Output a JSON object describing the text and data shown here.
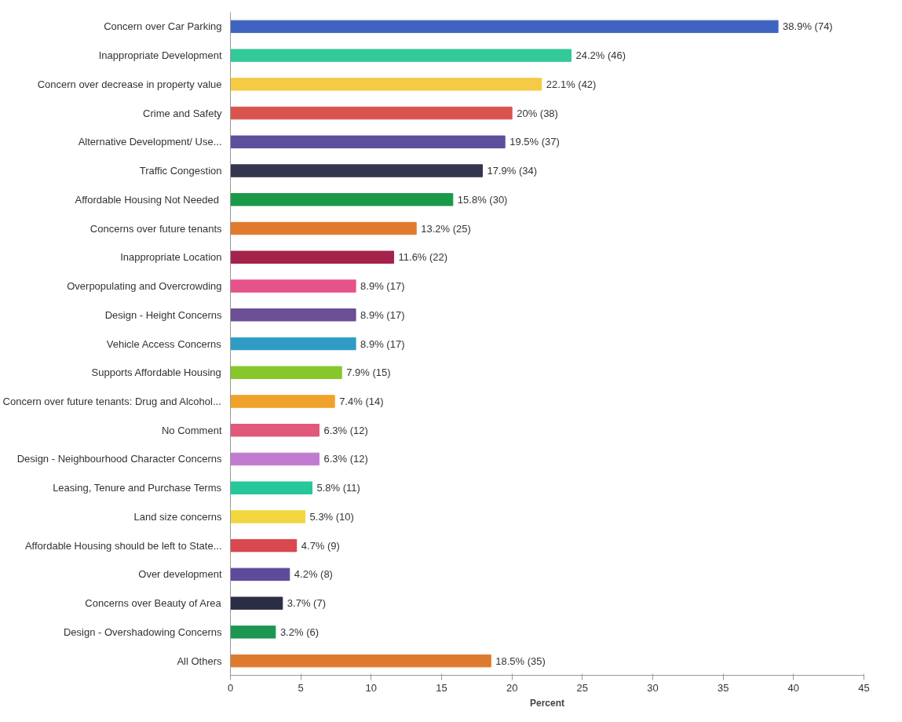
{
  "chart_data": {
    "type": "bar",
    "orientation": "horizontal",
    "xlabel": "Percent",
    "categories": [
      "Concern over Car Parking",
      "Inappropriate Development",
      "Concern over decrease in property value",
      "Crime and Safety",
      "Alternative Development/ Use...",
      "Traffic Congestion",
      "Affordable  Housing Not Needed",
      "Concerns over future tenants",
      "Inappropriate Location",
      "Overpopulating and Overcrowding",
      "Design - Height Concerns",
      "Vehicle Access Concerns",
      "Supports Affordable Housing",
      "Concern over future tenants: Drug and Alcohol...",
      "No Comment",
      "Design - Neighbourhood Character Concerns",
      "Leasing, Tenure and Purchase Terms",
      "Land size concerns",
      "Affordable Housing should be left to State...",
      "Over development",
      "Concerns over Beauty of Area",
      "Design - Overshadowing Concerns",
      "All Others"
    ],
    "values": [
      38.9,
      24.2,
      22.1,
      20,
      19.5,
      17.9,
      15.8,
      13.2,
      11.6,
      8.9,
      8.9,
      8.9,
      7.9,
      7.4,
      6.3,
      6.3,
      5.8,
      5.3,
      4.7,
      4.2,
      3.7,
      3.2,
      18.5
    ],
    "value_labels": [
      "38.9% (74)",
      "24.2% (46)",
      "22.1% (42)",
      "20% (38)",
      "19.5% (37)",
      "17.9% (34)",
      "15.8% (30)",
      "13.2% (25)",
      "11.6% (22)",
      "8.9% (17)",
      "8.9% (17)",
      "8.9% (17)",
      "7.9% (15)",
      "7.4% (14)",
      "6.3% (12)",
      "6.3% (12)",
      "5.8% (11)",
      "5.3% (10)",
      "4.7% (9)",
      "4.2% (8)",
      "3.7% (7)",
      "3.2% (6)",
      "18.5% (35)"
    ],
    "colors": [
      "#3f63c0",
      "#33c99a",
      "#f5cb45",
      "#d9534f",
      "#5a509c",
      "#33364d",
      "#1a9a48",
      "#e07b2e",
      "#a3234a",
      "#e5538a",
      "#6d4f95",
      "#2e9cc4",
      "#86c72c",
      "#f0a12a",
      "#e0587a",
      "#c27ccf",
      "#26c79a",
      "#f2d640",
      "#d9474f",
      "#5e4a9a",
      "#2a2e45",
      "#1c9650",
      "#de7a2e"
    ],
    "xlim": [
      0,
      45
    ],
    "xticks": [
      0,
      5,
      10,
      15,
      20,
      25,
      30,
      35,
      40,
      45
    ]
  }
}
